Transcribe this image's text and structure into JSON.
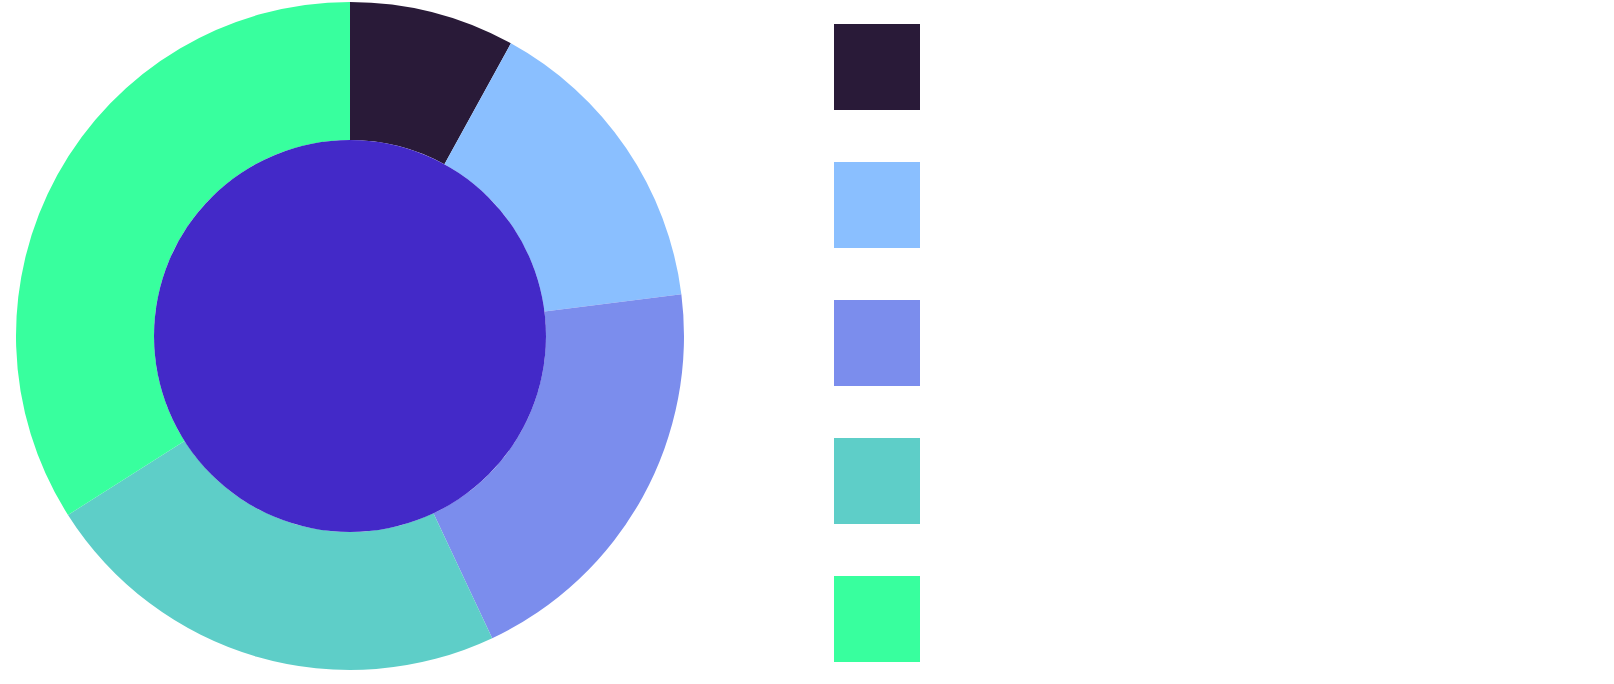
{
  "chart_data": {
    "type": "donut",
    "categories": [
      null,
      null,
      null,
      null,
      null
    ],
    "values": [
      8,
      15,
      20,
      23,
      34
    ],
    "colors": [
      "#291a38",
      "#8abfff",
      "#7b8ded",
      "#5ecec8",
      "#38ff9e"
    ]
  }
}
